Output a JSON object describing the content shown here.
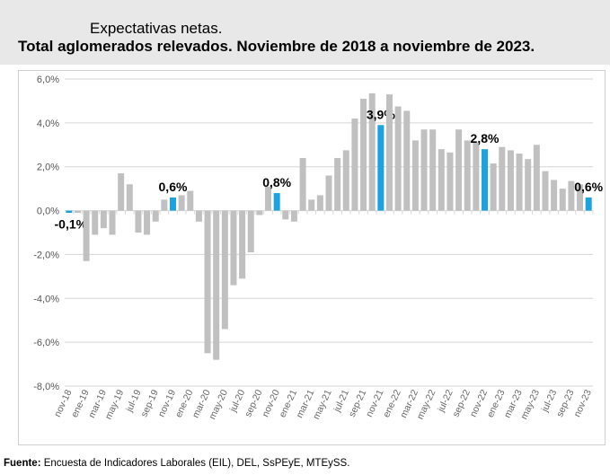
{
  "title_line1": "Expectativas netas.",
  "title_line2": "Total aglomerados relevados. Noviembre de 2018 a noviembre de 2023.",
  "source_label": "Fuente:",
  "source_text": " Encuesta de Indicadores Laborales (EIL), DEL, SsPEyE, MTEySS.",
  "chart_data": {
    "type": "bar",
    "title": "Expectativas netas. Total aglomerados relevados. Noviembre de 2018 a noviembre de 2023.",
    "ylim": [
      -8,
      6
    ],
    "yticks": [
      "-8,0%",
      "-6,0%",
      "-4,0%",
      "-2,0%",
      "0,0%",
      "2,0%",
      "4,0%",
      "6,0%"
    ],
    "grid": true,
    "colors": {
      "default": "#c0c0c0",
      "highlight": "#1aa3e0"
    },
    "categories": [
      "nov-18",
      "dic-18",
      "ene-19",
      "feb-19",
      "mar-19",
      "abr-19",
      "may-19",
      "jun-19",
      "jul-19",
      "ago-19",
      "sep-19",
      "oct-19",
      "nov-19",
      "dic-19",
      "ene-20",
      "feb-20",
      "mar-20",
      "abr-20",
      "may-20",
      "jun-20",
      "jul-20",
      "ago-20",
      "sep-20",
      "oct-20",
      "nov-20",
      "dic-20",
      "ene-21",
      "feb-21",
      "mar-21",
      "abr-21",
      "may-21",
      "jun-21",
      "jul-21",
      "ago-21",
      "sep-21",
      "oct-21",
      "nov-21",
      "dic-21",
      "ene-22",
      "feb-22",
      "mar-22",
      "abr-22",
      "may-22",
      "jun-22",
      "jul-22",
      "ago-22",
      "sep-22",
      "oct-22",
      "nov-22",
      "dic-22",
      "ene-23",
      "feb-23",
      "mar-23",
      "abr-23",
      "may-23",
      "jun-23",
      "jul-23",
      "ago-23",
      "sep-23",
      "oct-23",
      "nov-23"
    ],
    "values": [
      -0.1,
      -0.1,
      -2.3,
      -1.1,
      -0.8,
      -1.1,
      1.7,
      1.2,
      -1.0,
      -1.1,
      -0.5,
      0.5,
      0.6,
      0.7,
      0.9,
      -0.5,
      -6.5,
      -6.8,
      -5.4,
      -3.4,
      -3.1,
      -1.9,
      -0.2,
      1.1,
      0.8,
      -0.4,
      -0.5,
      2.4,
      0.5,
      0.7,
      1.6,
      2.4,
      2.75,
      4.2,
      5.1,
      5.35,
      3.9,
      5.3,
      4.75,
      4.55,
      3.2,
      3.7,
      3.7,
      2.8,
      2.65,
      3.7,
      3.2,
      3.1,
      2.8,
      2.15,
      2.9,
      2.75,
      2.6,
      2.35,
      3.0,
      1.8,
      1.4,
      1.0,
      1.35,
      1.2,
      0.6
    ],
    "highlighted": [
      {
        "category": "nov-18",
        "label": "-0,1%"
      },
      {
        "category": "nov-19",
        "label": "0,6%"
      },
      {
        "category": "nov-20",
        "label": "0,8%"
      },
      {
        "category": "nov-21",
        "label": "3,9%"
      },
      {
        "category": "nov-22",
        "label": "2,8%"
      },
      {
        "category": "nov-23",
        "label": "0,6%"
      }
    ]
  }
}
